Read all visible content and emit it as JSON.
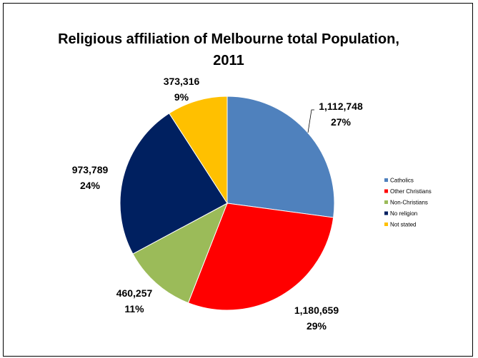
{
  "chart_data": {
    "type": "pie",
    "title_line1": "Religious affiliation of Melbourne total Population,",
    "title_line2": "2011",
    "categories": [
      "Catholics",
      "Other Christians",
      "Non-Christians",
      "No religion",
      "Not stated"
    ],
    "values": [
      1112748,
      1180659,
      460257,
      973789,
      373316
    ],
    "value_labels": [
      "1,112,748",
      "1,180,659",
      "460,257",
      "973,789",
      "373,316"
    ],
    "percent_labels": [
      "27%",
      "29%",
      "11%",
      "24%",
      "9%"
    ],
    "colors": [
      "#4f81bd",
      "#ff0000",
      "#9bbb59",
      "#002060",
      "#ffc000"
    ],
    "legend_placement": "right"
  }
}
